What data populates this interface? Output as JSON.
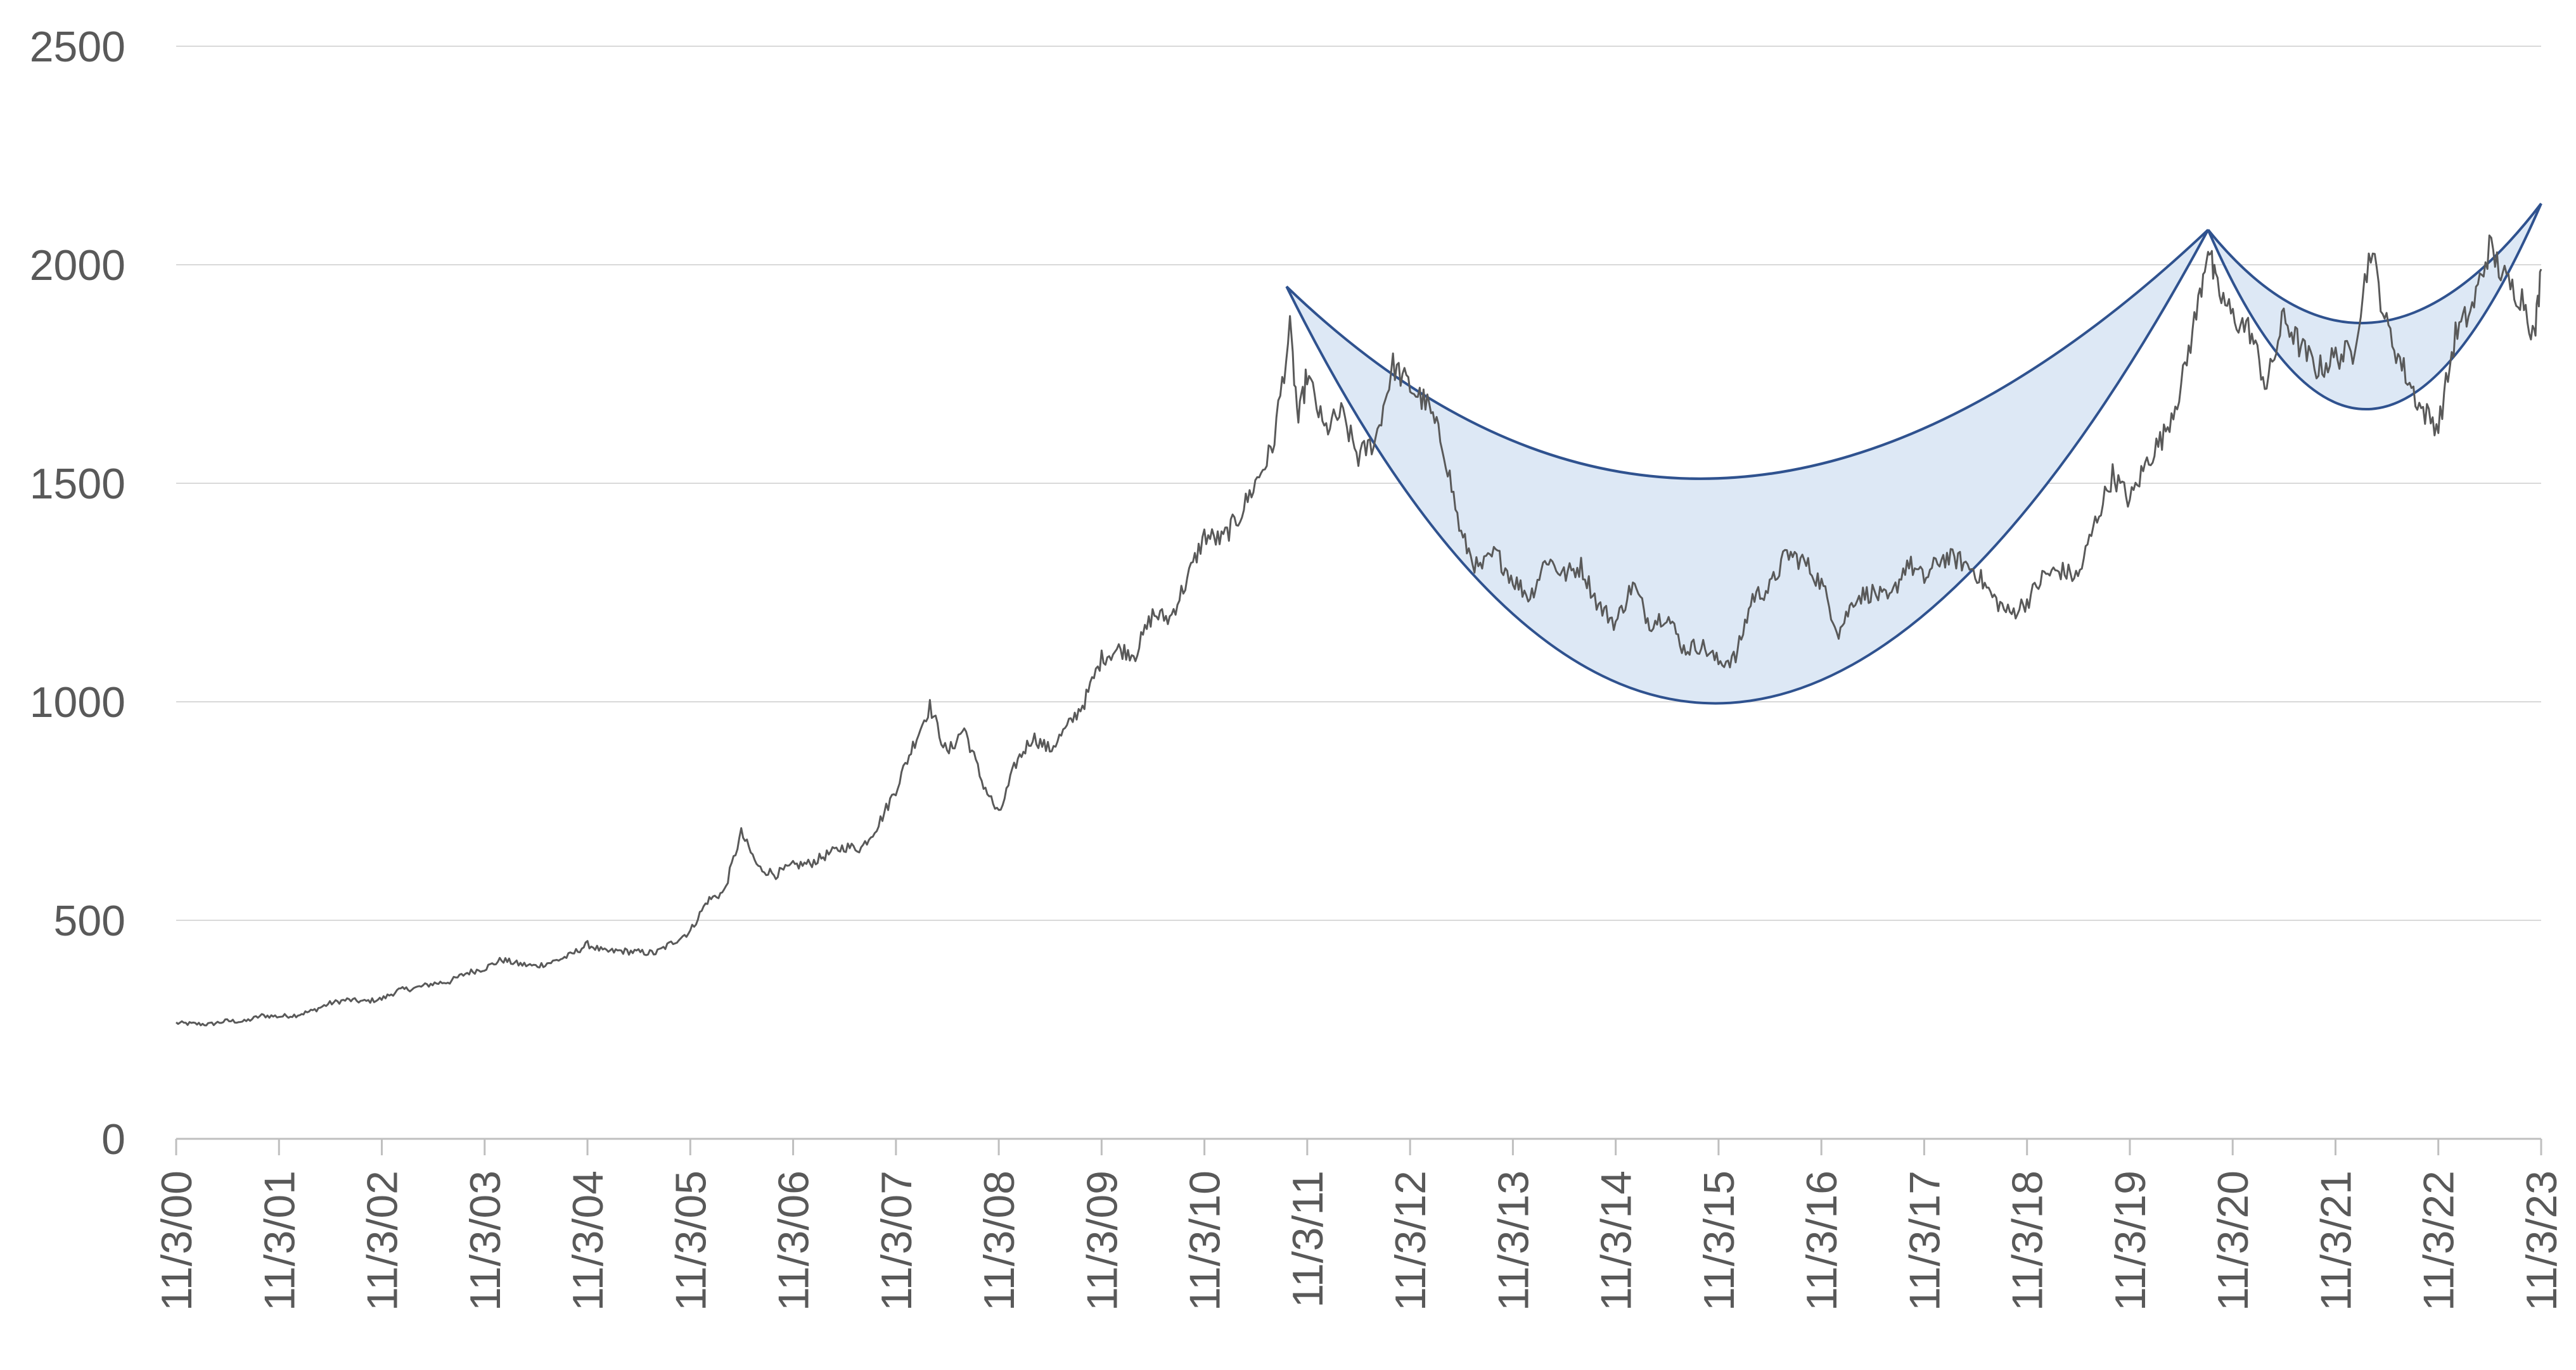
{
  "chart_data": {
    "type": "line",
    "title": "",
    "xlabel": "",
    "ylabel": "",
    "x_tick_labels": [
      "11/3/00",
      "11/3/01",
      "11/3/02",
      "11/3/03",
      "11/3/04",
      "11/3/05",
      "11/3/06",
      "11/3/07",
      "11/3/08",
      "11/3/09",
      "11/3/10",
      "11/3/11",
      "11/3/12",
      "11/3/13",
      "11/3/14",
      "11/3/15",
      "11/3/16",
      "11/3/17",
      "11/3/18",
      "11/3/19",
      "11/3/20",
      "11/3/21",
      "11/3/22",
      "11/3/23"
    ],
    "y_tick_labels": [
      "0",
      "500",
      "1000",
      "1500",
      "2000",
      "2500"
    ],
    "ylim": [
      0,
      2500
    ],
    "xlim": [
      "2000-11-03",
      "2023-11-03"
    ],
    "grid": "horizontal",
    "legend": "none",
    "series": [
      {
        "color": "#595959",
        "points": [
          [
            "2000-11-03",
            265
          ],
          [
            "2001-01-03",
            263
          ],
          [
            "2001-03-03",
            262
          ],
          [
            "2001-05-03",
            270
          ],
          [
            "2001-07-03",
            268
          ],
          [
            "2001-09-03",
            282
          ],
          [
            "2001-11-03",
            280
          ],
          [
            "2002-01-03",
            283
          ],
          [
            "2002-03-03",
            293
          ],
          [
            "2002-05-03",
            310
          ],
          [
            "2002-07-03",
            318
          ],
          [
            "2002-09-03",
            314
          ],
          [
            "2002-11-03",
            320
          ],
          [
            "2003-01-03",
            340
          ],
          [
            "2003-03-03",
            345
          ],
          [
            "2003-05-03",
            355
          ],
          [
            "2003-07-03",
            360
          ],
          [
            "2003-09-03",
            380
          ],
          [
            "2003-11-03",
            390
          ],
          [
            "2004-01-03",
            410
          ],
          [
            "2004-03-03",
            400
          ],
          [
            "2004-05-03",
            395
          ],
          [
            "2004-07-03",
            405
          ],
          [
            "2004-09-03",
            420
          ],
          [
            "2004-11-03",
            445
          ],
          [
            "2005-01-03",
            428
          ],
          [
            "2005-03-03",
            430
          ],
          [
            "2005-05-03",
            427
          ],
          [
            "2005-07-03",
            425
          ],
          [
            "2005-09-03",
            450
          ],
          [
            "2005-11-03",
            475
          ],
          [
            "2006-01-03",
            545
          ],
          [
            "2006-03-03",
            565
          ],
          [
            "2006-05-03",
            700
          ],
          [
            "2006-07-03",
            620
          ],
          [
            "2006-09-03",
            605
          ],
          [
            "2006-11-03",
            625
          ],
          [
            "2007-01-03",
            630
          ],
          [
            "2007-03-03",
            650
          ],
          [
            "2007-05-03",
            668
          ],
          [
            "2007-07-03",
            665
          ],
          [
            "2007-09-03",
            720
          ],
          [
            "2007-11-03",
            800
          ],
          [
            "2008-01-03",
            900
          ],
          [
            "2008-03-03",
            990
          ],
          [
            "2008-05-03",
            880
          ],
          [
            "2008-07-03",
            940
          ],
          [
            "2008-09-03",
            820
          ],
          [
            "2008-11-03",
            740
          ],
          [
            "2009-01-03",
            860
          ],
          [
            "2009-03-03",
            920
          ],
          [
            "2009-05-03",
            890
          ],
          [
            "2009-07-03",
            940
          ],
          [
            "2009-09-03",
            1000
          ],
          [
            "2009-11-03",
            1100
          ],
          [
            "2010-01-03",
            1120
          ],
          [
            "2010-03-03",
            1110
          ],
          [
            "2010-05-03",
            1200
          ],
          [
            "2010-07-03",
            1190
          ],
          [
            "2010-09-03",
            1280
          ],
          [
            "2010-11-03",
            1380
          ],
          [
            "2011-01-03",
            1370
          ],
          [
            "2011-03-03",
            1420
          ],
          [
            "2011-05-03",
            1500
          ],
          [
            "2011-07-03",
            1580
          ],
          [
            "2011-09-03",
            1850
          ],
          [
            "2011-10-03",
            1640
          ],
          [
            "2011-11-03",
            1750
          ],
          [
            "2012-01-03",
            1620
          ],
          [
            "2012-03-03",
            1660
          ],
          [
            "2012-05-03",
            1560
          ],
          [
            "2012-07-03",
            1600
          ],
          [
            "2012-09-03",
            1770
          ],
          [
            "2012-11-03",
            1720
          ],
          [
            "2013-01-03",
            1680
          ],
          [
            "2013-03-03",
            1580
          ],
          [
            "2013-05-03",
            1380
          ],
          [
            "2013-07-03",
            1300
          ],
          [
            "2013-09-03",
            1340
          ],
          [
            "2013-11-03",
            1280
          ],
          [
            "2014-01-03",
            1240
          ],
          [
            "2014-03-03",
            1330
          ],
          [
            "2014-05-03",
            1290
          ],
          [
            "2014-07-03",
            1310
          ],
          [
            "2014-09-03",
            1220
          ],
          [
            "2014-11-03",
            1180
          ],
          [
            "2015-01-03",
            1270
          ],
          [
            "2015-03-03",
            1180
          ],
          [
            "2015-05-03",
            1200
          ],
          [
            "2015-07-03",
            1120
          ],
          [
            "2015-09-03",
            1130
          ],
          [
            "2015-11-03",
            1090
          ],
          [
            "2016-01-03",
            1100
          ],
          [
            "2016-03-03",
            1240
          ],
          [
            "2016-05-03",
            1260
          ],
          [
            "2016-07-03",
            1340
          ],
          [
            "2016-09-03",
            1320
          ],
          [
            "2016-11-03",
            1270
          ],
          [
            "2017-01-03",
            1160
          ],
          [
            "2017-03-03",
            1240
          ],
          [
            "2017-05-03",
            1250
          ],
          [
            "2017-07-03",
            1230
          ],
          [
            "2017-09-03",
            1320
          ],
          [
            "2017-11-03",
            1280
          ],
          [
            "2018-01-03",
            1330
          ],
          [
            "2018-03-03",
            1325
          ],
          [
            "2018-05-03",
            1300
          ],
          [
            "2018-07-03",
            1240
          ],
          [
            "2018-09-03",
            1200
          ],
          [
            "2018-11-03",
            1230
          ],
          [
            "2019-01-03",
            1290
          ],
          [
            "2019-03-03",
            1300
          ],
          [
            "2019-05-03",
            1285
          ],
          [
            "2019-07-03",
            1410
          ],
          [
            "2019-09-03",
            1520
          ],
          [
            "2019-11-03",
            1460
          ],
          [
            "2020-01-03",
            1550
          ],
          [
            "2020-03-03",
            1610
          ],
          [
            "2020-05-03",
            1720
          ],
          [
            "2020-07-03",
            1910
          ],
          [
            "2020-08-07",
            2050
          ],
          [
            "2020-09-03",
            1950
          ],
          [
            "2020-11-03",
            1880
          ],
          [
            "2021-01-03",
            1850
          ],
          [
            "2021-03-03",
            1720
          ],
          [
            "2021-05-03",
            1880
          ],
          [
            "2021-07-03",
            1810
          ],
          [
            "2021-09-03",
            1760
          ],
          [
            "2021-11-03",
            1790
          ],
          [
            "2022-01-03",
            1800
          ],
          [
            "2022-03-08",
            2040
          ],
          [
            "2022-05-03",
            1860
          ],
          [
            "2022-07-03",
            1760
          ],
          [
            "2022-09-03",
            1670
          ],
          [
            "2022-11-03",
            1630
          ],
          [
            "2023-01-03",
            1840
          ],
          [
            "2023-03-03",
            1900
          ],
          [
            "2023-05-03",
            2040
          ],
          [
            "2023-07-03",
            1960
          ],
          [
            "2023-09-03",
            1920
          ],
          [
            "2023-10-10",
            1830
          ],
          [
            "2023-11-03",
            1990
          ]
        ]
      }
    ]
  },
  "colors": {
    "line": "#595959",
    "band_fill": "#dde8f5",
    "band_stroke": "#2f528f",
    "grid": "#d9d9d9",
    "axis": "#bfbfbf",
    "tick_text": "#595959"
  }
}
